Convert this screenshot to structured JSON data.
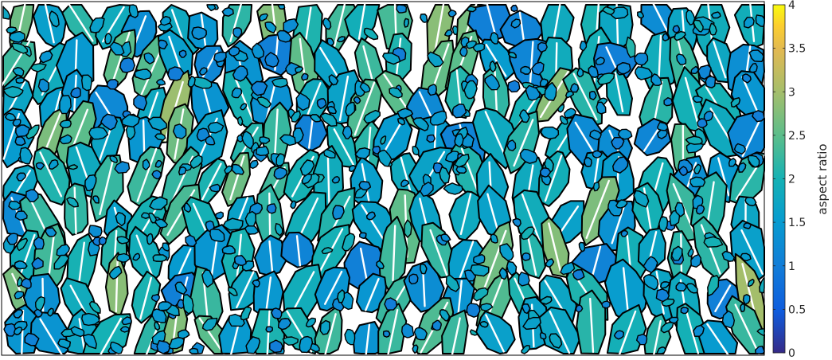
{
  "chart_data": {
    "type": "heatmap",
    "title": "",
    "description_kind": "grain map colored by aspect ratio with white major-axis lines",
    "colormap": "parula",
    "clim": [
      0,
      4
    ],
    "colorbar": {
      "label": "aspect ratio",
      "ticks": [
        0,
        0.5,
        1,
        1.5,
        2,
        2.5,
        3,
        3.5,
        4
      ],
      "tick_labels": [
        "0",
        "0.5",
        "1",
        "1.5",
        "2",
        "2.5",
        "3",
        "3.5",
        "4"
      ],
      "position": "right"
    },
    "grain_boundary_color": "#000000",
    "axis_line_color": "#ffffff",
    "grid": false,
    "legend": "none"
  }
}
